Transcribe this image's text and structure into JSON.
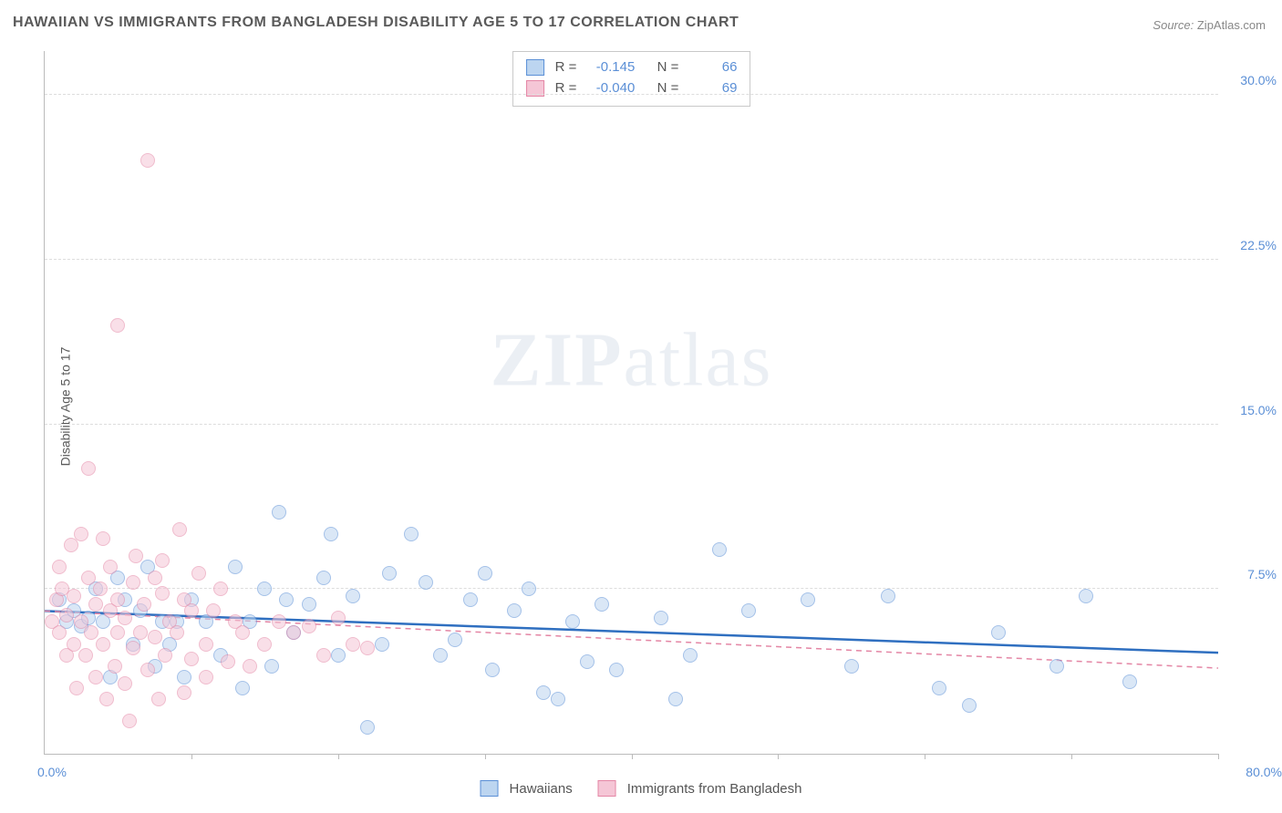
{
  "chart": {
    "type": "scatter",
    "title": "HAWAIIAN VS IMMIGRANTS FROM BANGLADESH DISABILITY AGE 5 TO 17 CORRELATION CHART",
    "source_label": "Source:",
    "source_value": "ZipAtlas.com",
    "y_axis_label": "Disability Age 5 to 17",
    "watermark": "ZIPatlas",
    "xlim": [
      0,
      80
    ],
    "ylim": [
      0,
      32
    ],
    "x_min_label": "0.0%",
    "x_max_label": "80.0%",
    "y_ticks": [
      7.5,
      15.0,
      22.5,
      30.0
    ],
    "y_tick_labels": [
      "7.5%",
      "15.0%",
      "22.5%",
      "30.0%"
    ],
    "x_tick_positions": [
      0,
      10,
      20,
      30,
      40,
      50,
      60,
      70,
      80
    ],
    "background_color": "#ffffff",
    "grid_color": "#dddddd",
    "axis_color": "#bbbbbb",
    "tick_label_color": "#5b8fd6",
    "title_color": "#5a5a5a",
    "title_fontsize": 16,
    "label_fontsize": 14,
    "marker_radius": 8,
    "marker_stroke_width": 1.5,
    "series": [
      {
        "name": "Hawaiians",
        "fill": "#bcd5f0",
        "stroke": "#5b8fd6",
        "fill_opacity": 0.55,
        "legend_label": "Hawaiians",
        "R": "-0.145",
        "N": "66",
        "trend": {
          "y_at_x0": 6.5,
          "y_at_x80": 4.6,
          "color": "#2f6fc0",
          "width": 2.5,
          "dash": ""
        },
        "points": [
          [
            1,
            7
          ],
          [
            1.5,
            6
          ],
          [
            2,
            6.5
          ],
          [
            2.5,
            5.8
          ],
          [
            3,
            6.2
          ],
          [
            3.5,
            7.5
          ],
          [
            4,
            6
          ],
          [
            4.5,
            3.5
          ],
          [
            5,
            8
          ],
          [
            5.5,
            7
          ],
          [
            6,
            5
          ],
          [
            6.5,
            6.5
          ],
          [
            7,
            8.5
          ],
          [
            7.5,
            4
          ],
          [
            8,
            6
          ],
          [
            8.5,
            5
          ],
          [
            9,
            6
          ],
          [
            9.5,
            3.5
          ],
          [
            10,
            7
          ],
          [
            11,
            6
          ],
          [
            12,
            4.5
          ],
          [
            13,
            8.5
          ],
          [
            13.5,
            3
          ],
          [
            14,
            6
          ],
          [
            15,
            7.5
          ],
          [
            15.5,
            4
          ],
          [
            16,
            11
          ],
          [
            16.5,
            7
          ],
          [
            17,
            5.5
          ],
          [
            18,
            6.8
          ],
          [
            19,
            8
          ],
          [
            19.5,
            10
          ],
          [
            20,
            4.5
          ],
          [
            21,
            7.2
          ],
          [
            22,
            1.2
          ],
          [
            23,
            5
          ],
          [
            23.5,
            8.2
          ],
          [
            25,
            10
          ],
          [
            26,
            7.8
          ],
          [
            27,
            4.5
          ],
          [
            28,
            5.2
          ],
          [
            29,
            7
          ],
          [
            30,
            8.2
          ],
          [
            30.5,
            3.8
          ],
          [
            32,
            6.5
          ],
          [
            33,
            7.5
          ],
          [
            34,
            2.8
          ],
          [
            35,
            2.5
          ],
          [
            36,
            6
          ],
          [
            37,
            4.2
          ],
          [
            38,
            6.8
          ],
          [
            39,
            3.8
          ],
          [
            42,
            6.2
          ],
          [
            43,
            2.5
          ],
          [
            44,
            4.5
          ],
          [
            46,
            9.3
          ],
          [
            48,
            6.5
          ],
          [
            52,
            7
          ],
          [
            55,
            4
          ],
          [
            57.5,
            7.2
          ],
          [
            61,
            3
          ],
          [
            63,
            2.2
          ],
          [
            65,
            5.5
          ],
          [
            69,
            4
          ],
          [
            71,
            7.2
          ],
          [
            74,
            3.3
          ]
        ]
      },
      {
        "name": "Immigrants from Bangladesh",
        "fill": "#f5c6d6",
        "stroke": "#e486a5",
        "fill_opacity": 0.55,
        "legend_label": "Immigrants from Bangladesh",
        "R": "-0.040",
        "N": "69",
        "trend": {
          "y_at_x0": 6.5,
          "y_at_x80": 3.9,
          "color": "#e486a5",
          "width": 1.5,
          "dash": "6 5"
        },
        "points": [
          [
            0.5,
            6
          ],
          [
            0.8,
            7
          ],
          [
            1,
            5.5
          ],
          [
            1,
            8.5
          ],
          [
            1.2,
            7.5
          ],
          [
            1.5,
            4.5
          ],
          [
            1.5,
            6.3
          ],
          [
            1.8,
            9.5
          ],
          [
            2,
            5
          ],
          [
            2,
            7.2
          ],
          [
            2.2,
            3
          ],
          [
            2.5,
            6
          ],
          [
            2.5,
            10
          ],
          [
            2.8,
            4.5
          ],
          [
            3,
            8
          ],
          [
            3,
            13
          ],
          [
            3.2,
            5.5
          ],
          [
            3.5,
            6.8
          ],
          [
            3.5,
            3.5
          ],
          [
            3.8,
            7.5
          ],
          [
            4,
            9.8
          ],
          [
            4,
            5
          ],
          [
            4.2,
            2.5
          ],
          [
            4.5,
            6.5
          ],
          [
            4.5,
            8.5
          ],
          [
            4.8,
            4
          ],
          [
            5,
            7
          ],
          [
            5,
            5.5
          ],
          [
            5,
            19.5
          ],
          [
            5.5,
            6.2
          ],
          [
            5.5,
            3.2
          ],
          [
            5.8,
            1.5
          ],
          [
            6,
            7.8
          ],
          [
            6,
            4.8
          ],
          [
            6.2,
            9
          ],
          [
            6.5,
            5.5
          ],
          [
            6.8,
            6.8
          ],
          [
            7,
            3.8
          ],
          [
            7,
            27
          ],
          [
            7.5,
            5.3
          ],
          [
            7.5,
            8
          ],
          [
            7.8,
            2.5
          ],
          [
            8,
            7.3
          ],
          [
            8,
            8.8
          ],
          [
            8.2,
            4.5
          ],
          [
            8.5,
            6
          ],
          [
            9,
            5.5
          ],
          [
            9.2,
            10.2
          ],
          [
            9.5,
            7
          ],
          [
            9.5,
            2.8
          ],
          [
            10,
            4.3
          ],
          [
            10,
            6.5
          ],
          [
            10.5,
            8.2
          ],
          [
            11,
            5
          ],
          [
            11,
            3.5
          ],
          [
            11.5,
            6.5
          ],
          [
            12,
            7.5
          ],
          [
            12.5,
            4.2
          ],
          [
            13,
            6
          ],
          [
            13.5,
            5.5
          ],
          [
            14,
            4
          ],
          [
            15,
            5
          ],
          [
            16,
            6
          ],
          [
            17,
            5.5
          ],
          [
            18,
            5.8
          ],
          [
            19,
            4.5
          ],
          [
            20,
            6.2
          ],
          [
            21,
            5
          ],
          [
            22,
            4.8
          ]
        ]
      }
    ],
    "stats_labels": {
      "R": "R =",
      "N": "N ="
    },
    "legend": {
      "box_border": "#c8c8c8",
      "text_color": "#555555"
    }
  }
}
